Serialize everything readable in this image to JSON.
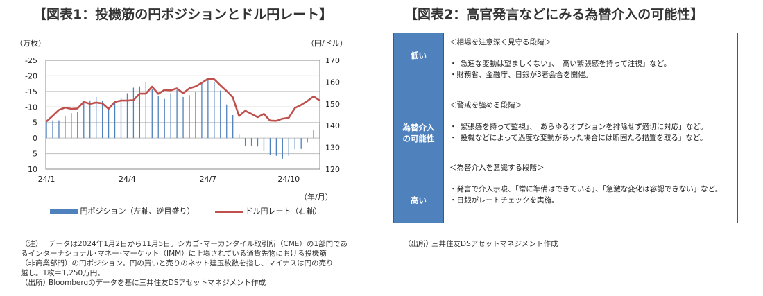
{
  "left": {
    "title": "【図表1：投機筋の円ポジションとドル円レート】",
    "notes": {
      "note_label": "（注）",
      "note_lines": [
        "データは2024年1月2日から11月5日。シカゴ･マーカンタイル取引所（CME）の1部門であ",
        "るインターナショナル･マネー･マーケット（IMM）に上場されている通貨先物における投機筋",
        "（非商業部門）の円ポジション。円の買いと売りのネット建玉枚数を指し、マイナスは円の売り",
        "越し。1枚＝1,250万円。"
      ],
      "source_label": "（出所）",
      "source": "Bloombergのデータを基に三井住友DSアセットマネジメント作成"
    }
  },
  "chart_data": {
    "type": "bar+line",
    "title": "投機筋の円ポジションとドル円レート",
    "y_left_label": "（万枚）",
    "y_right_label": "（円/ドル）",
    "x_label": "（年/月）",
    "y_left_ticks": [
      "-25",
      "-20",
      "-15",
      "-10",
      "-5",
      "0",
      "5",
      "10"
    ],
    "y_left_range": [
      -25,
      10
    ],
    "y_left_inverted": true,
    "y_right_ticks": [
      "170",
      "160",
      "150",
      "140",
      "130",
      "120"
    ],
    "y_right_range": [
      120,
      170
    ],
    "x_ticks": [
      {
        "label": "24/1",
        "index": 0
      },
      {
        "label": "24/4",
        "index": 13
      },
      {
        "label": "24/7",
        "index": 26
      },
      {
        "label": "24/10",
        "index": 39
      }
    ],
    "grid": true,
    "legend_position": "bottom",
    "colors": {
      "bar": "#4f81bd",
      "line": "#c0504d",
      "grid": "#bfbfbf"
    },
    "series": [
      {
        "name": "円ポジション（左軸、逆目盛り）",
        "type": "bar",
        "axis": "left",
        "values": [
          -5.2,
          -5.7,
          -5.7,
          -7.1,
          -8.0,
          -8.5,
          -11.8,
          -12.1,
          -13.2,
          -11.9,
          -9.4,
          -11.4,
          -12.9,
          -14.4,
          -16.2,
          -16.6,
          -18.1,
          -15.8,
          -13.5,
          -12.6,
          -14.4,
          -15.5,
          -13.2,
          -13.8,
          -14.9,
          -17.7,
          -18.8,
          -18.1,
          -15.3,
          -10.8,
          -7.4,
          -1.2,
          2.4,
          2.4,
          2.7,
          4.2,
          5.5,
          5.7,
          6.6,
          5.7,
          3.6,
          3.5,
          1.4,
          -2.6,
          -4.5
        ]
      },
      {
        "name": "ドル円レート（右軸）",
        "type": "line",
        "axis": "right",
        "values": [
          141.9,
          144.5,
          147.2,
          148.3,
          147.7,
          147.9,
          150.9,
          150.0,
          150.6,
          150.2,
          147.7,
          150.9,
          151.5,
          151.5,
          151.7,
          154.7,
          154.7,
          157.9,
          154.6,
          156.4,
          156.2,
          157.1,
          154.9,
          157.1,
          158.0,
          159.6,
          161.5,
          161.3,
          158.5,
          155.9,
          153.0,
          144.4,
          146.8,
          145.4,
          143.9,
          145.4,
          142.3,
          142.2,
          143.2,
          143.6,
          148.1,
          149.5,
          151.3,
          153.4,
          151.5
        ]
      }
    ]
  },
  "right": {
    "title": "【図表2：高官発言などにみる為替介入の可能性】",
    "axis_top": "低い",
    "axis_mid": [
      "為替介入",
      "の可能性"
    ],
    "axis_bottom": "高い",
    "stages": [
      {
        "heading": "＜相場を注意深く見守る段階＞",
        "items": [
          "・「急速な変動は望ましくない」、「高い緊張感を持って注視」など。",
          "・財務省、金融庁、日銀が3者会合を開催。"
        ]
      },
      {
        "heading": "＜警戒を強める段階＞",
        "items": [
          "・「緊張感を持って監視」、「あらゆるオプションを排除せず適切に対応」など。",
          "・「投機などによって過度な変動があった場合には断固たる措置を取る」など。"
        ]
      },
      {
        "heading": "＜為替介入を意識する段階＞",
        "items": [
          "・発言で介入示唆、「常に準備はできている」、「急激な変化は容認できない」など。",
          "・日銀がレートチェックを実施。"
        ]
      }
    ],
    "source_label": "（出所）",
    "source": "三井住友DSアセットマネジメント作成"
  }
}
